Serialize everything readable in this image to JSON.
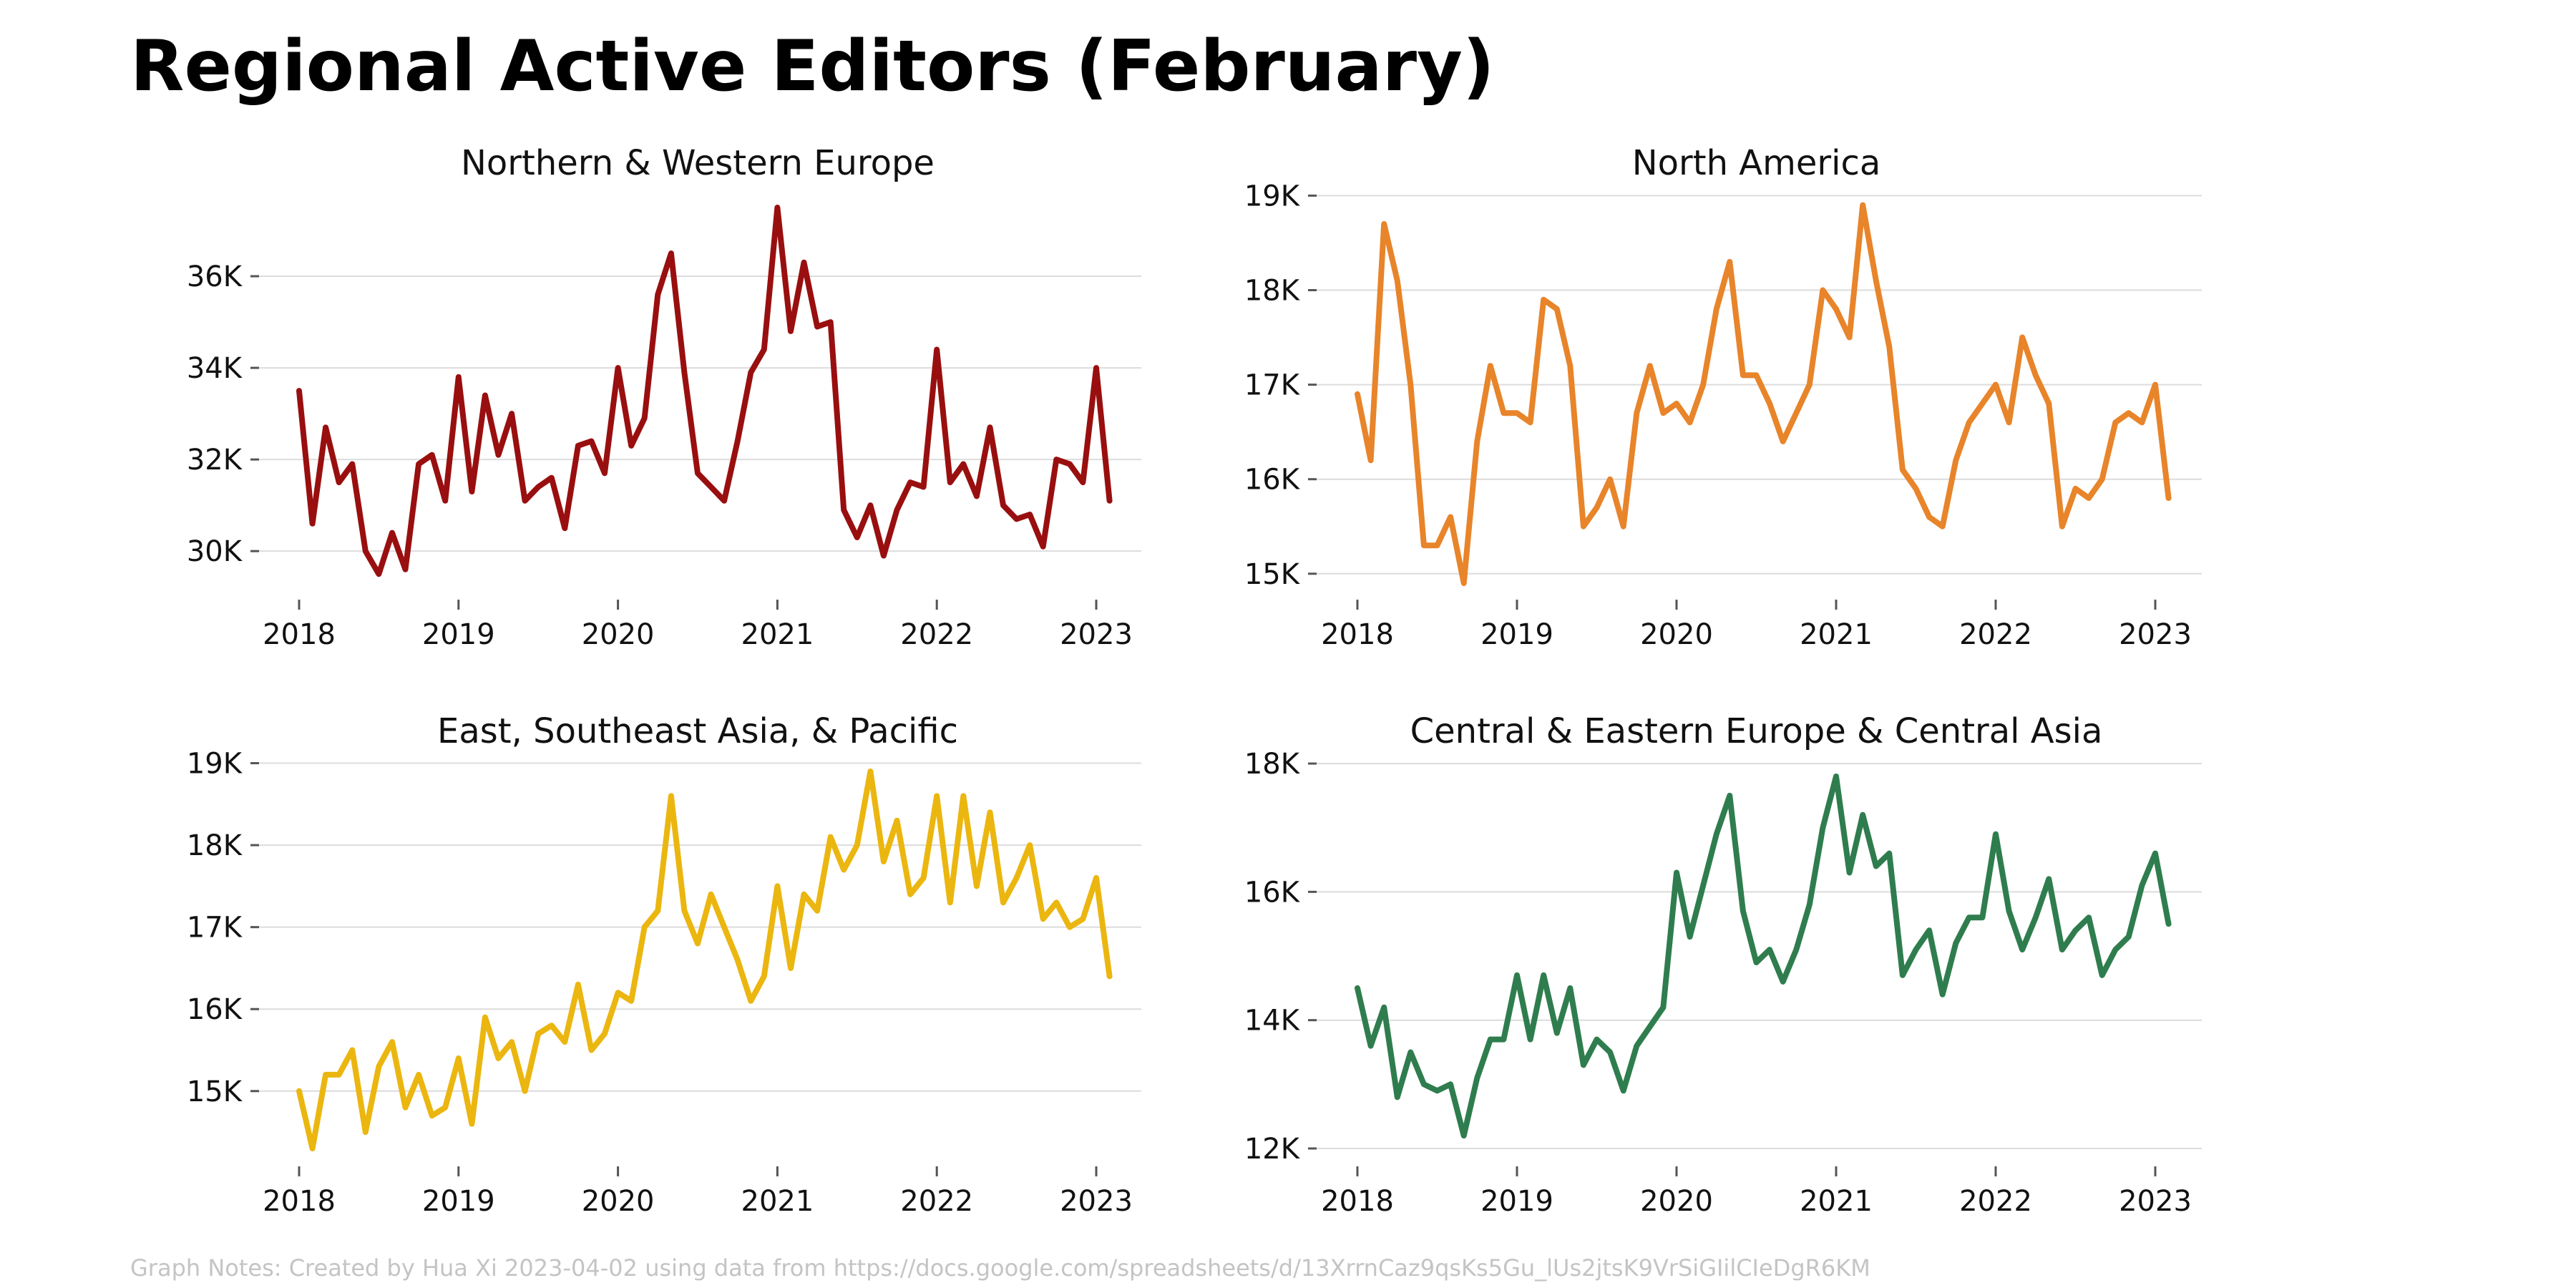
{
  "title": "Regional Active Editors (February)",
  "note": "Graph Notes: Created by Hua Xi 2023-04-02 using data from https://docs.google.com/spreadsheets/d/13XrrnCaz9qsKs5Gu_lUs2jtsK9VrSiGIilCIeDgR6KM",
  "chart_data": [
    {
      "type": "line",
      "title": "Northern & Western Europe",
      "color": "#990F0F",
      "xlim": [
        2018,
        2023.1
      ],
      "ylim": [
        29300,
        37500
      ],
      "yticks": [
        30000,
        32000,
        34000,
        36000
      ],
      "ytick_labels": [
        "30K",
        "32K",
        "34K",
        "36K"
      ],
      "xticks": [
        2018,
        2019,
        2020,
        2021,
        2022,
        2023
      ],
      "xtick_labels": [
        "2018",
        "2019",
        "2020",
        "2021",
        "2022",
        "2023"
      ],
      "x_start": 2018,
      "x_step_months": 1,
      "values": [
        33500,
        30600,
        32700,
        31500,
        31900,
        30000,
        29500,
        30400,
        29600,
        31900,
        32100,
        31100,
        33800,
        31300,
        33400,
        32100,
        33000,
        31100,
        31400,
        31600,
        30500,
        32300,
        32400,
        31700,
        34000,
        32300,
        32900,
        35600,
        36500,
        33900,
        31700,
        31400,
        31100,
        32400,
        33900,
        34400,
        37500,
        34800,
        36300,
        34900,
        35000,
        30900,
        30300,
        31000,
        29900,
        30900,
        31500,
        31400,
        34400,
        31500,
        31900,
        31200,
        32700,
        31000,
        30700,
        30800,
        30100,
        32000,
        31900,
        31500,
        34000,
        31100
      ]
    },
    {
      "type": "line",
      "title": "North America",
      "color": "#E8842A",
      "xlim": [
        2018,
        2023.1
      ],
      "ylim": [
        14900,
        18950
      ],
      "yticks": [
        15000,
        16000,
        17000,
        18000,
        19000
      ],
      "ytick_labels": [
        "15K",
        "16K",
        "17K",
        "18K",
        "19K"
      ],
      "xticks": [
        2018,
        2019,
        2020,
        2021,
        2022,
        2023
      ],
      "xtick_labels": [
        "2018",
        "2019",
        "2020",
        "2021",
        "2022",
        "2023"
      ],
      "x_start": 2018,
      "x_step_months": 1,
      "values": [
        16900,
        16200,
        18700,
        18100,
        17000,
        15300,
        15300,
        15600,
        14900,
        16400,
        17200,
        16700,
        16700,
        16600,
        17900,
        17800,
        17200,
        15500,
        15700,
        16000,
        15500,
        16700,
        17200,
        16700,
        16800,
        16600,
        17000,
        17800,
        18300,
        17100,
        17100,
        16800,
        16400,
        16700,
        17000,
        18000,
        17800,
        17500,
        18900,
        18100,
        17400,
        16100,
        15900,
        15600,
        15500,
        16200,
        16600,
        16800,
        17000,
        16600,
        17500,
        17100,
        16800,
        15500,
        15900,
        15800,
        16000,
        16600,
        16700,
        16600,
        17000,
        15800
      ]
    },
    {
      "type": "line",
      "title": "East, Southeast Asia, & Pacific",
      "color": "#EBB60F",
      "xlim": [
        2018,
        2023.1
      ],
      "ylim": [
        14300,
        18900
      ],
      "yticks": [
        15000,
        16000,
        17000,
        18000,
        19000
      ],
      "ytick_labels": [
        "15K",
        "16K",
        "17K",
        "18K",
        "19K"
      ],
      "xticks": [
        2018,
        2019,
        2020,
        2021,
        2022,
        2023
      ],
      "xtick_labels": [
        "2018",
        "2019",
        "2020",
        "2021",
        "2022",
        "2023"
      ],
      "x_start": 2018,
      "x_step_months": 1,
      "values": [
        15000,
        14300,
        15200,
        15200,
        15500,
        14500,
        15300,
        15600,
        14800,
        15200,
        14700,
        14800,
        15400,
        14600,
        15900,
        15400,
        15600,
        15000,
        15700,
        15800,
        15600,
        16300,
        15500,
        15700,
        16200,
        16100,
        17000,
        17200,
        18600,
        17200,
        16800,
        17400,
        17000,
        16600,
        16100,
        16400,
        17500,
        16500,
        17400,
        17200,
        18100,
        17700,
        18000,
        18900,
        17800,
        18300,
        17400,
        17600,
        18600,
        17300,
        18600,
        17500,
        18400,
        17300,
        17600,
        18000,
        17100,
        17300,
        17000,
        17100,
        17600,
        16400
      ]
    },
    {
      "type": "line",
      "title": "Central & Eastern Europe & Central Asia",
      "color": "#2F7D4E",
      "xlim": [
        2018,
        2023.1
      ],
      "ylim": [
        12000,
        17800
      ],
      "yticks": [
        12000,
        14000,
        16000,
        18000
      ],
      "ytick_labels": [
        "12K",
        "14K",
        "16K",
        "18K"
      ],
      "xticks": [
        2018,
        2019,
        2020,
        2021,
        2022,
        2023
      ],
      "xtick_labels": [
        "2018",
        "2019",
        "2020",
        "2021",
        "2022",
        "2023"
      ],
      "x_start": 2018,
      "x_step_months": 1,
      "values": [
        14500,
        13600,
        14200,
        12800,
        13500,
        13000,
        12900,
        13000,
        12200,
        13100,
        13700,
        13700,
        14700,
        13700,
        14700,
        13800,
        14500,
        13300,
        13700,
        13500,
        12900,
        13600,
        13900,
        14200,
        16300,
        15300,
        16100,
        16900,
        17500,
        15700,
        14900,
        15100,
        14600,
        15100,
        15800,
        17000,
        17800,
        16300,
        17200,
        16400,
        16600,
        14700,
        15100,
        15400,
        14400,
        15200,
        15600,
        15600,
        16900,
        15700,
        15100,
        15600,
        16200,
        15100,
        15400,
        15600,
        14700,
        15100,
        15300,
        16100,
        16600,
        15500
      ]
    }
  ]
}
